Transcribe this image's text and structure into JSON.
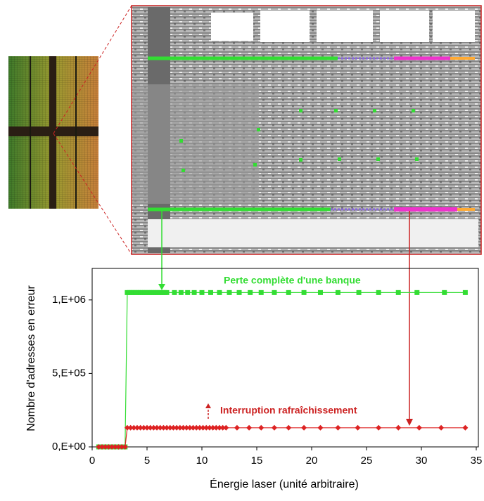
{
  "chart_data": {
    "type": "line",
    "y_label": "Nombre d'adresses en erreur",
    "x_label": "Énergie laser (unité arbitraire)",
    "annotations": [
      "Perte complète d'une banque",
      "Interruption rafraîchissement"
    ],
    "xlim": [
      0,
      35
    ],
    "xticks": [
      0,
      5,
      10,
      15,
      20,
      25,
      30,
      35
    ],
    "ylim": [
      0,
      1200000
    ],
    "yticks": [
      {
        "value": 0,
        "label": "0,E+00"
      },
      {
        "value": 500000,
        "label": "5,E+05"
      },
      {
        "value": 1000000,
        "label": "1,E+06"
      }
    ],
    "series": [
      {
        "color": "#33dd33",
        "marker": "square",
        "x": [
          0.6,
          0.9,
          1.2,
          1.5,
          1.8,
          2.1,
          2.4,
          2.7,
          3.0,
          3.2,
          3.4,
          3.6,
          3.8,
          4.0,
          4.2,
          4.4,
          4.6,
          4.8,
          5.0,
          5.2,
          5.4,
          5.6,
          5.8,
          6.0,
          6.2,
          6.4,
          6.6,
          6.8,
          7.5,
          8.1,
          8.7,
          9.3,
          10.0,
          10.8,
          11.6,
          12.5,
          13.4,
          14.4,
          15.4,
          16.6,
          17.9,
          19.3,
          20.8,
          22.4,
          24.3,
          26.1,
          27.9,
          29.6,
          32.1,
          34.0
        ],
        "values": [
          0,
          0,
          0,
          0,
          0,
          0,
          0,
          0,
          0,
          1050000,
          1050000,
          1050000,
          1050000,
          1050000,
          1050000,
          1050000,
          1050000,
          1050000,
          1050000,
          1050000,
          1050000,
          1050000,
          1050000,
          1050000,
          1050000,
          1050000,
          1050000,
          1050000,
          1050000,
          1050000,
          1050000,
          1050000,
          1050000,
          1050000,
          1050000,
          1050000,
          1050000,
          1050000,
          1050000,
          1050000,
          1050000,
          1050000,
          1050000,
          1050000,
          1050000,
          1050000,
          1050000,
          1050000,
          1050000,
          1050000
        ]
      },
      {
        "color": "#dd2222",
        "marker": "diamond",
        "x": [
          0.6,
          0.9,
          1.2,
          1.5,
          1.8,
          2.1,
          2.4,
          2.7,
          3.0,
          3.2,
          3.5,
          3.8,
          4.1,
          4.4,
          4.7,
          5.0,
          5.3,
          5.6,
          5.9,
          6.2,
          6.5,
          6.8,
          7.1,
          7.4,
          7.7,
          8.0,
          8.3,
          8.6,
          8.9,
          9.2,
          9.5,
          9.8,
          10.1,
          10.4,
          10.7,
          11.0,
          11.3,
          11.6,
          11.9,
          12.2,
          13.2,
          14.3,
          15.4,
          16.6,
          17.9,
          19.3,
          20.8,
          22.4,
          24.2,
          26.1,
          27.9,
          29.8,
          31.8,
          34.0
        ],
        "values": [
          0,
          0,
          0,
          0,
          0,
          0,
          0,
          0,
          0,
          130000,
          130000,
          130000,
          130000,
          130000,
          130000,
          130000,
          130000,
          130000,
          130000,
          130000,
          130000,
          130000,
          130000,
          130000,
          130000,
          130000,
          130000,
          130000,
          130000,
          130000,
          130000,
          130000,
          130000,
          130000,
          130000,
          130000,
          130000,
          130000,
          130000,
          130000,
          130000,
          130000,
          130000,
          130000,
          130000,
          130000,
          130000,
          130000,
          130000,
          130000,
          130000,
          130000,
          130000,
          130000
        ]
      }
    ]
  }
}
